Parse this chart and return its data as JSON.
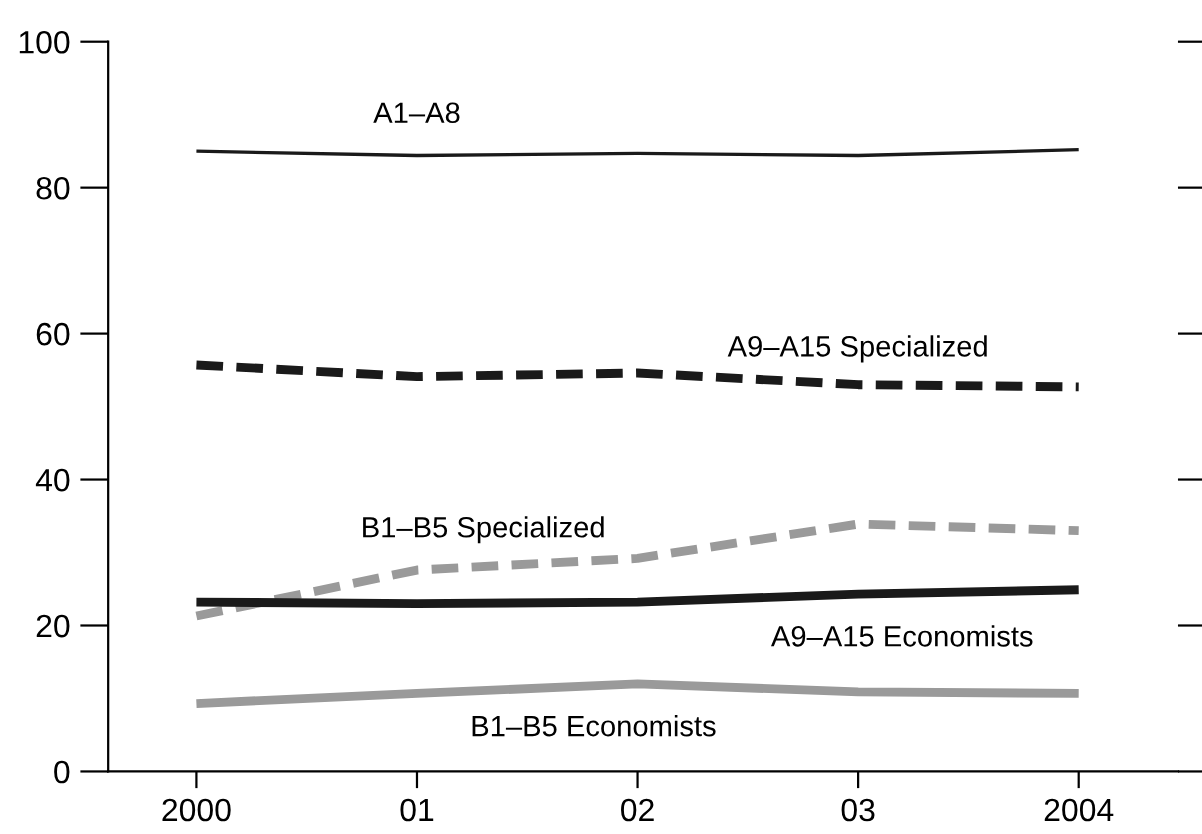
{
  "chart_data": {
    "type": "line",
    "categories": [
      "2000",
      "01",
      "02",
      "03",
      "2004"
    ],
    "series": [
      {
        "name": "A1–A8",
        "color": "#1a1a1a",
        "line_style": "solid",
        "values": [
          85,
          84.4,
          84.7,
          84.4,
          85.2
        ]
      },
      {
        "name": "A9–A15 Specialized",
        "color": "#1a1a1a",
        "line_style": "dashed",
        "values": [
          55.7,
          54.1,
          54.6,
          53,
          52.7
        ]
      },
      {
        "name": "B1–B5 Specialized",
        "color": "#9a9a9a",
        "line_style": "dashed",
        "values": [
          21.3,
          27.6,
          29.2,
          33.9,
          33
        ]
      },
      {
        "name": "A9–A15 Economists",
        "color": "#1a1a1a",
        "line_style": "solid",
        "values": [
          23.2,
          23,
          23.2,
          24.3,
          24.9
        ]
      },
      {
        "name": "B1–B5 Economists",
        "color": "#9a9a9a",
        "line_style": "solid",
        "values": [
          9.3,
          10.7,
          12,
          10.9,
          10.7
        ]
      }
    ],
    "ylim": [
      0,
      100
    ],
    "yticks": [
      0,
      20,
      40,
      60,
      80,
      100
    ],
    "grid": false,
    "legend": false,
    "marker": "none"
  }
}
